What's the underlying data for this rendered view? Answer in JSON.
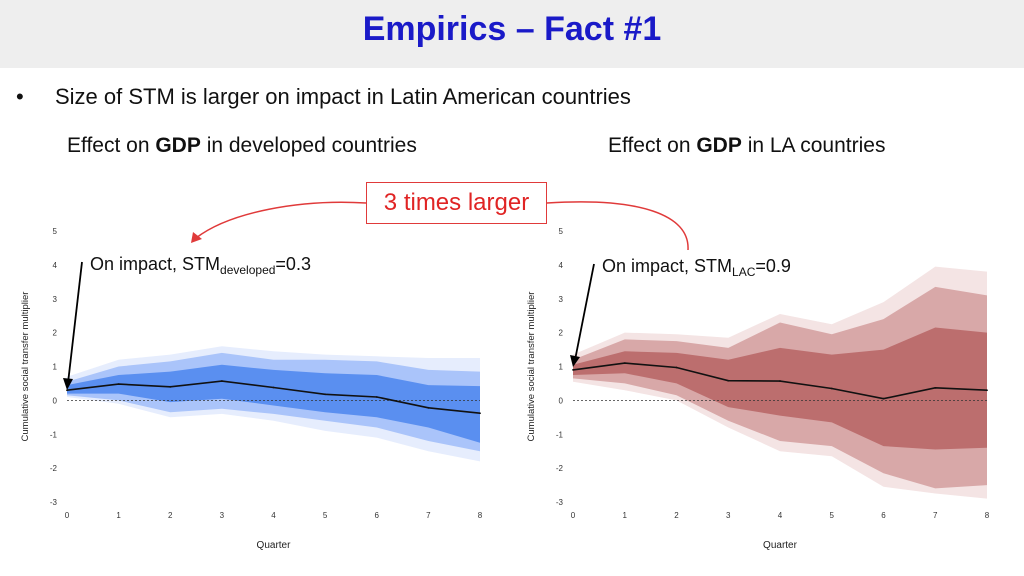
{
  "title": "Empirics – Fact #1",
  "bullet": {
    "marker": "•",
    "text": "Size of STM is larger on impact in Latin American countries"
  },
  "subtitles": {
    "left": {
      "prefix": "Effect on ",
      "bold": "GDP",
      "suffix": " in developed countries"
    },
    "right": {
      "prefix": "Effect on ",
      "bold": "GDP",
      "suffix": " in LA countries"
    }
  },
  "callout": "3 times larger",
  "annotations": {
    "left": {
      "prefix": "On impact, STM",
      "subscript": "developed",
      "value": "=0.3"
    },
    "right": {
      "prefix": "On impact, STM",
      "subscript": "LAC",
      "value": "=0.9"
    }
  },
  "colors": {
    "title": "#1a1ac8",
    "callout": "#e02424",
    "blue_bands": [
      "#e6edfd",
      "#aac4fa",
      "#5a8ff0"
    ],
    "red_bands": [
      "#f4e4e4",
      "#d8a8a8",
      "#bc6e6e"
    ]
  },
  "chart_data": [
    {
      "type": "line",
      "title": "Effect on GDP in developed countries",
      "xlabel": "Quarter",
      "ylabel": "Cumulative social transfer multiplier",
      "x": [
        0,
        1,
        2,
        3,
        4,
        5,
        6,
        7,
        8
      ],
      "ylim": [
        -3,
        5
      ],
      "yticks": [
        -3,
        -2,
        -1,
        0,
        1,
        2,
        3,
        4,
        5
      ],
      "series": [
        {
          "name": "point estimate",
          "values": [
            0.3,
            0.48,
            0.4,
            0.57,
            0.38,
            0.18,
            0.1,
            -0.22,
            -0.38
          ]
        }
      ],
      "bands": [
        {
          "name": "outer",
          "upper": [
            0.7,
            1.2,
            1.35,
            1.6,
            1.45,
            1.35,
            1.3,
            1.25,
            1.25
          ],
          "lower": [
            0.1,
            -0.1,
            -0.5,
            -0.4,
            -0.6,
            -0.9,
            -1.1,
            -1.5,
            -1.8
          ]
        },
        {
          "name": "middle",
          "upper": [
            0.55,
            1.0,
            1.15,
            1.4,
            1.2,
            1.2,
            1.15,
            0.9,
            0.85
          ],
          "lower": [
            0.15,
            0.0,
            -0.35,
            -0.25,
            -0.4,
            -0.6,
            -0.8,
            -1.2,
            -1.5
          ]
        },
        {
          "name": "inner",
          "upper": [
            0.45,
            0.75,
            0.85,
            1.05,
            0.9,
            0.8,
            0.75,
            0.45,
            0.42
          ],
          "lower": [
            0.2,
            0.2,
            -0.05,
            0.05,
            -0.15,
            -0.35,
            -0.5,
            -0.8,
            -1.25
          ]
        }
      ]
    },
    {
      "type": "line",
      "title": "Effect on GDP in LA countries",
      "xlabel": "Quarter",
      "ylabel": "Cumulative social transfer multiplier",
      "x": [
        0,
        1,
        2,
        3,
        4,
        5,
        6,
        7,
        8
      ],
      "ylim": [
        -3,
        5
      ],
      "yticks": [
        -3,
        -2,
        -1,
        0,
        1,
        2,
        3,
        4,
        5
      ],
      "series": [
        {
          "name": "point estimate",
          "values": [
            0.9,
            1.1,
            0.97,
            0.58,
            0.57,
            0.35,
            0.05,
            0.37,
            0.3
          ]
        }
      ],
      "bands": [
        {
          "name": "outer",
          "upper": [
            1.35,
            2.0,
            1.95,
            1.85,
            2.55,
            2.25,
            2.9,
            3.95,
            3.8
          ],
          "lower": [
            0.55,
            0.3,
            0.0,
            -0.8,
            -1.5,
            -1.65,
            -2.55,
            -2.75,
            -2.9
          ]
        },
        {
          "name": "middle",
          "upper": [
            1.2,
            1.8,
            1.75,
            1.55,
            2.3,
            1.95,
            2.4,
            3.35,
            3.1
          ],
          "lower": [
            0.65,
            0.5,
            0.15,
            -0.6,
            -1.2,
            -1.35,
            -2.15,
            -2.6,
            -2.5
          ]
        },
        {
          "name": "inner",
          "upper": [
            1.05,
            1.45,
            1.4,
            1.2,
            1.55,
            1.35,
            1.5,
            2.15,
            2.0
          ],
          "lower": [
            0.75,
            0.8,
            0.5,
            -0.2,
            -0.45,
            -0.65,
            -1.35,
            -1.45,
            -1.4
          ]
        }
      ]
    }
  ]
}
